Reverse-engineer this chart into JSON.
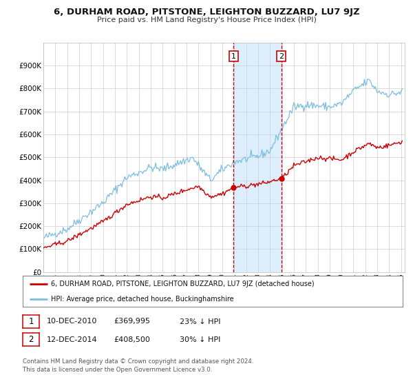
{
  "title": "6, DURHAM ROAD, PITSTONE, LEIGHTON BUZZARD, LU7 9JZ",
  "subtitle": "Price paid vs. HM Land Registry's House Price Index (HPI)",
  "legend_line1": "6, DURHAM ROAD, PITSTONE, LEIGHTON BUZZARD, LU7 9JZ (detached house)",
  "legend_line2": "HPI: Average price, detached house, Buckinghamshire",
  "sale1_date": "10-DEC-2010",
  "sale1_price": 369995,
  "sale1_label": "£369,995",
  "sale1_pct": "23% ↓ HPI",
  "sale1_year": 2010.95,
  "sale2_date": "12-DEC-2014",
  "sale2_price": 408500,
  "sale2_label": "£408,500",
  "sale2_pct": "30% ↓ HPI",
  "sale2_year": 2014.95,
  "hpi_color": "#7bbde0",
  "price_color": "#cc0000",
  "marker_color": "#cc0000",
  "dashed_color": "#cc0000",
  "shade_color": "#ddeeff",
  "grid_color": "#cccccc",
  "bg_color": "#ffffff",
  "footnote_line1": "Contains HM Land Registry data © Crown copyright and database right 2024.",
  "footnote_line2": "This data is licensed under the Open Government Licence v3.0.",
  "ylim": [
    0,
    1000000
  ],
  "yticks": [
    0,
    100000,
    200000,
    300000,
    400000,
    500000,
    600000,
    700000,
    800000,
    900000
  ],
  "ytick_labels": [
    "£0",
    "£100K",
    "£200K",
    "£300K",
    "£400K",
    "£500K",
    "£600K",
    "£700K",
    "£800K",
    "£900K"
  ]
}
